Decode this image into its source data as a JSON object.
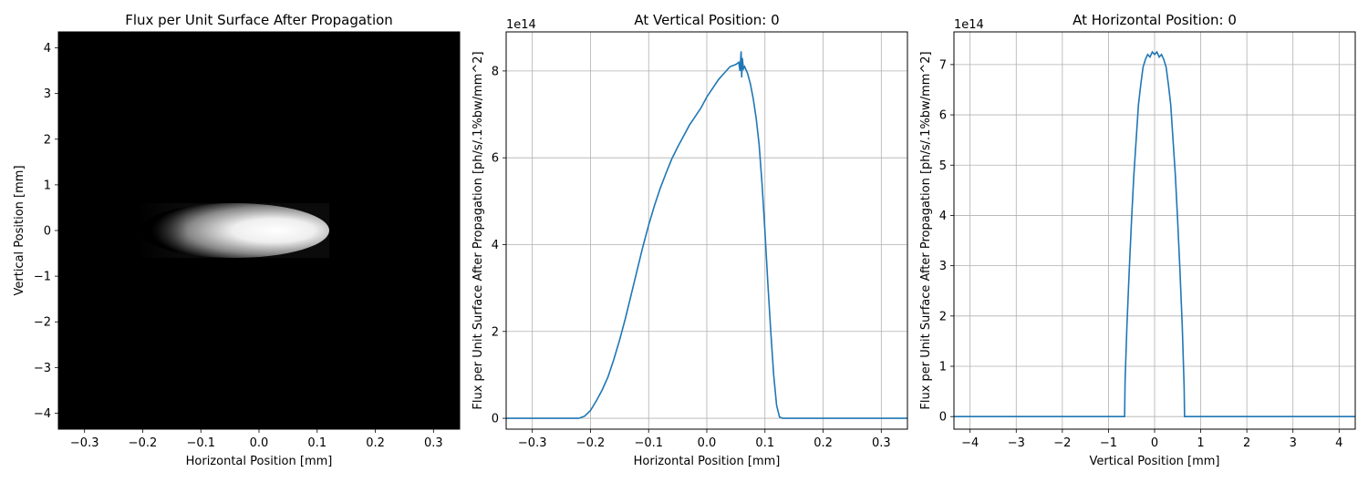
{
  "chart_data": [
    {
      "type": "heatmap",
      "title": "Flux per Unit Surface After Propagation",
      "xlabel": "Horizontal Position [mm]",
      "ylabel": "Vertical Position [mm]",
      "xlim": [
        -0.345,
        0.345
      ],
      "ylim": [
        -4.35,
        4.35
      ],
      "xticks": [
        -0.3,
        -0.2,
        -0.1,
        0.0,
        0.1,
        0.2,
        0.3
      ],
      "xtick_labels": [
        "−0.3",
        "−0.2",
        "−0.1",
        "0.0",
        "0.1",
        "0.2",
        "0.3"
      ],
      "yticks": [
        -4,
        -3,
        -2,
        -1,
        0,
        1,
        2,
        3,
        4
      ],
      "ytick_labels": [
        "−4",
        "−3",
        "−2",
        "−1",
        "0",
        "1",
        "2",
        "3",
        "4"
      ],
      "colormap": "gray",
      "background_color": "#000000",
      "beam_extent": {
        "x": [
          -0.205,
          0.12
        ],
        "y": [
          -0.6,
          0.6
        ]
      },
      "grid": false
    },
    {
      "type": "line",
      "title": "At Vertical Position: 0",
      "xlabel": "Horizontal Position [mm]",
      "ylabel": "Flux per Unit Surface After Propagation [ph/s/.1%bw/mm^2]",
      "scale_label": "1e14",
      "xlim": [
        -0.345,
        0.345
      ],
      "ylim": [
        -0.25,
        8.9
      ],
      "xticks": [
        -0.3,
        -0.2,
        -0.1,
        0.0,
        0.1,
        0.2,
        0.3
      ],
      "xtick_labels": [
        "−0.3",
        "−0.2",
        "−0.1",
        "0.0",
        "0.1",
        "0.2",
        "0.3"
      ],
      "yticks": [
        0,
        2,
        4,
        6,
        8
      ],
      "ytick_labels": [
        "0",
        "2",
        "4",
        "6",
        "8"
      ],
      "grid": true,
      "color": "#1f77b4",
      "x": [
        -0.345,
        -0.22,
        -0.21,
        -0.2,
        -0.19,
        -0.18,
        -0.17,
        -0.16,
        -0.15,
        -0.14,
        -0.13,
        -0.12,
        -0.11,
        -0.1,
        -0.09,
        -0.08,
        -0.07,
        -0.06,
        -0.05,
        -0.04,
        -0.03,
        -0.02,
        -0.01,
        0.0,
        0.01,
        0.02,
        0.03,
        0.04,
        0.05,
        0.055,
        0.057,
        0.059,
        0.06,
        0.061,
        0.063,
        0.065,
        0.07,
        0.075,
        0.08,
        0.085,
        0.09,
        0.095,
        0.1,
        0.105,
        0.11,
        0.115,
        0.12,
        0.125,
        0.13,
        0.345
      ],
      "y": [
        0.0,
        0.0,
        0.05,
        0.18,
        0.4,
        0.65,
        0.95,
        1.35,
        1.8,
        2.3,
        2.85,
        3.4,
        3.95,
        4.45,
        4.9,
        5.3,
        5.65,
        5.98,
        6.25,
        6.5,
        6.75,
        6.95,
        7.15,
        7.4,
        7.6,
        7.8,
        7.95,
        8.1,
        8.15,
        8.2,
        8.0,
        8.45,
        7.85,
        8.3,
        8.05,
        8.1,
        7.95,
        7.7,
        7.35,
        6.9,
        6.3,
        5.4,
        4.3,
        3.1,
        2.0,
        1.0,
        0.3,
        0.03,
        0.0,
        0.0
      ]
    },
    {
      "type": "line",
      "title": "At Horizontal Position: 0",
      "xlabel": "Vertical Position [mm]",
      "ylabel": "Flux per Unit Surface After Propagation [ph/s/.1%bw/mm^2]",
      "scale_label": "1e14",
      "xlim": [
        -4.35,
        4.35
      ],
      "ylim": [
        -0.25,
        7.65
      ],
      "xticks": [
        -4,
        -3,
        -2,
        -1,
        0,
        1,
        2,
        3,
        4
      ],
      "xtick_labels": [
        "−4",
        "−3",
        "−2",
        "−1",
        "0",
        "1",
        "2",
        "3",
        "4"
      ],
      "yticks": [
        0,
        1,
        2,
        3,
        4,
        5,
        6,
        7
      ],
      "ytick_labels": [
        "0",
        "1",
        "2",
        "3",
        "4",
        "5",
        "6",
        "7"
      ],
      "grid": true,
      "color": "#1f77b4",
      "x": [
        -4.35,
        -0.65,
        -0.64,
        -0.6,
        -0.55,
        -0.5,
        -0.45,
        -0.4,
        -0.35,
        -0.3,
        -0.25,
        -0.2,
        -0.15,
        -0.1,
        -0.05,
        0.0,
        0.05,
        0.1,
        0.15,
        0.2,
        0.25,
        0.3,
        0.35,
        0.4,
        0.45,
        0.5,
        0.55,
        0.6,
        0.64,
        0.65,
        4.35
      ],
      "y": [
        0.0,
        0.0,
        0.7,
        1.8,
        2.9,
        3.9,
        4.8,
        5.5,
        6.2,
        6.6,
        6.95,
        7.1,
        7.2,
        7.15,
        7.25,
        7.2,
        7.25,
        7.15,
        7.2,
        7.1,
        6.95,
        6.6,
        6.2,
        5.5,
        4.8,
        3.9,
        2.9,
        1.8,
        0.6,
        0.0,
        0.0
      ]
    }
  ]
}
